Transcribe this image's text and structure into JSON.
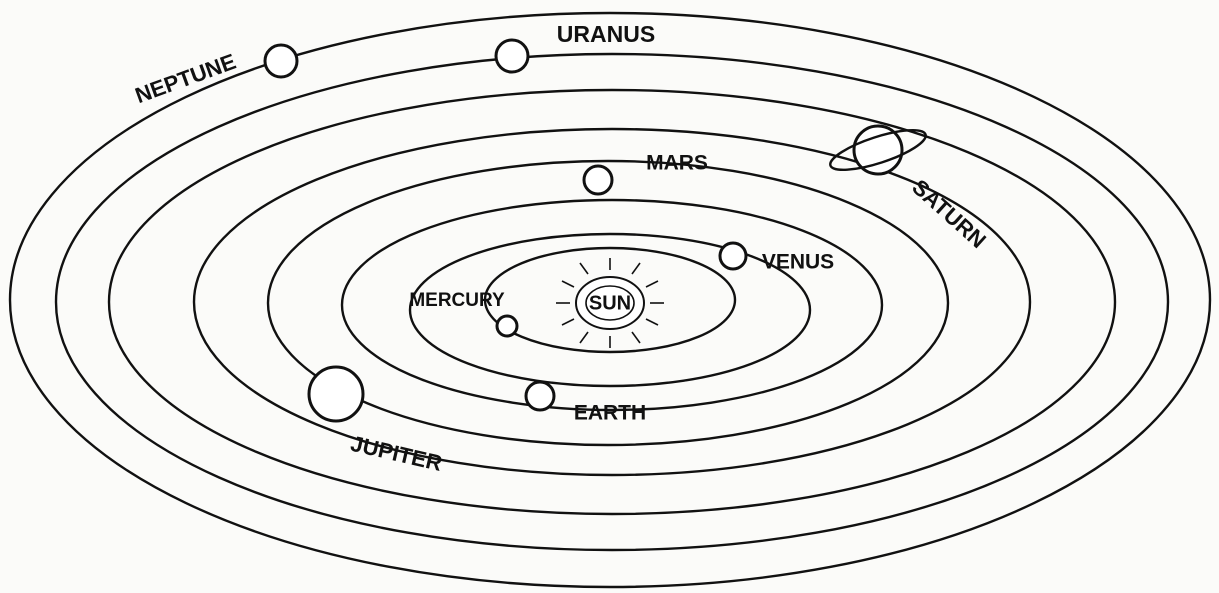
{
  "sun": {
    "label": "SUN"
  },
  "planets": [
    {
      "label": "MERCURY"
    },
    {
      "label": "VENUS"
    },
    {
      "label": "EARTH"
    },
    {
      "label": "MARS"
    },
    {
      "label": "JUPITER"
    },
    {
      "label": "SATURN"
    },
    {
      "label": "URANUS"
    },
    {
      "label": "NEPTUNE"
    }
  ]
}
